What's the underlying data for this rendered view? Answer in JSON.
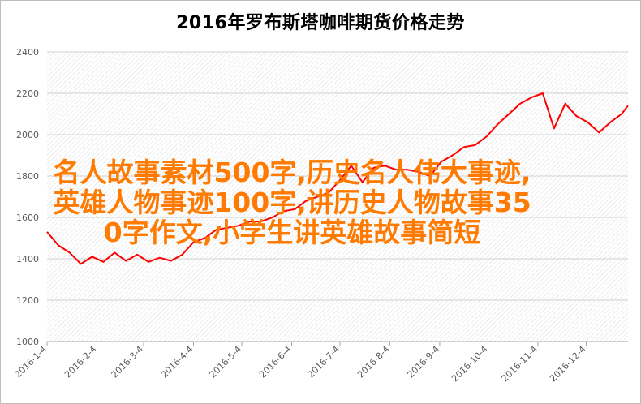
{
  "chart_data": {
    "type": "line",
    "title": "2016年罗布斯塔咖啡期货价格走势",
    "xlabel": "",
    "ylabel": "",
    "ylim": [
      1000,
      2400
    ],
    "yticks": [
      1000,
      1200,
      1400,
      1600,
      1800,
      2000,
      2200,
      2400
    ],
    "xtick_labels": [
      "2016-1-4",
      "2016-2-4",
      "2016-3-4",
      "2016-4-4",
      "2016-5-4",
      "2016-6-4",
      "2016-7-4",
      "2016-8-4",
      "2016-9-4",
      "2016-10-4",
      "2016-11-4",
      "2016-12-4"
    ],
    "grid": "hatched plot area",
    "series": [
      {
        "color": "#ff0000",
        "x": [
          "2016-1-4",
          "2016-1-11",
          "2016-1-18",
          "2016-1-25",
          "2016-2-1",
          "2016-2-8",
          "2016-2-15",
          "2016-2-22",
          "2016-2-29",
          "2016-3-7",
          "2016-3-14",
          "2016-3-21",
          "2016-3-28",
          "2016-4-4",
          "2016-4-11",
          "2016-4-18",
          "2016-4-25",
          "2016-5-2",
          "2016-5-9",
          "2016-5-16",
          "2016-5-23",
          "2016-5-30",
          "2016-6-6",
          "2016-6-13",
          "2016-6-20",
          "2016-6-27",
          "2016-7-4",
          "2016-7-11",
          "2016-7-18",
          "2016-7-25",
          "2016-8-1",
          "2016-8-8",
          "2016-8-15",
          "2016-8-22",
          "2016-8-29",
          "2016-9-5",
          "2016-9-12",
          "2016-9-19",
          "2016-9-26",
          "2016-10-3",
          "2016-10-10",
          "2016-10-17",
          "2016-10-24",
          "2016-10-31",
          "2016-11-7",
          "2016-11-14",
          "2016-11-21",
          "2016-11-28",
          "2016-12-5",
          "2016-12-12",
          "2016-12-19",
          "2016-12-26",
          "2016-12-30"
        ],
        "values": [
          1530,
          1465,
          1430,
          1375,
          1410,
          1385,
          1430,
          1390,
          1420,
          1385,
          1405,
          1390,
          1420,
          1480,
          1500,
          1540,
          1550,
          1560,
          1580,
          1580,
          1600,
          1630,
          1640,
          1680,
          1700,
          1720,
          1780,
          1850,
          1770,
          1840,
          1850,
          1830,
          1830,
          1820,
          1800,
          1870,
          1900,
          1940,
          1950,
          1990,
          2050,
          2100,
          2150,
          2180,
          2200,
          2030,
          2150,
          2090,
          2060,
          2010,
          2060,
          2100,
          2140
        ]
      }
    ]
  },
  "overlay": {
    "line1": "名人故事素材500字,历史名人伟大事迹,",
    "line2": "英雄人物事迹100字,讲历史人物故事35",
    "line3": "0字作文,小学生讲英雄故事简短"
  },
  "colors": {
    "series": "#ff0000",
    "overlay_text": "#ff7a00",
    "axis_text": "#595959",
    "hatch": "#d9d9d9"
  }
}
